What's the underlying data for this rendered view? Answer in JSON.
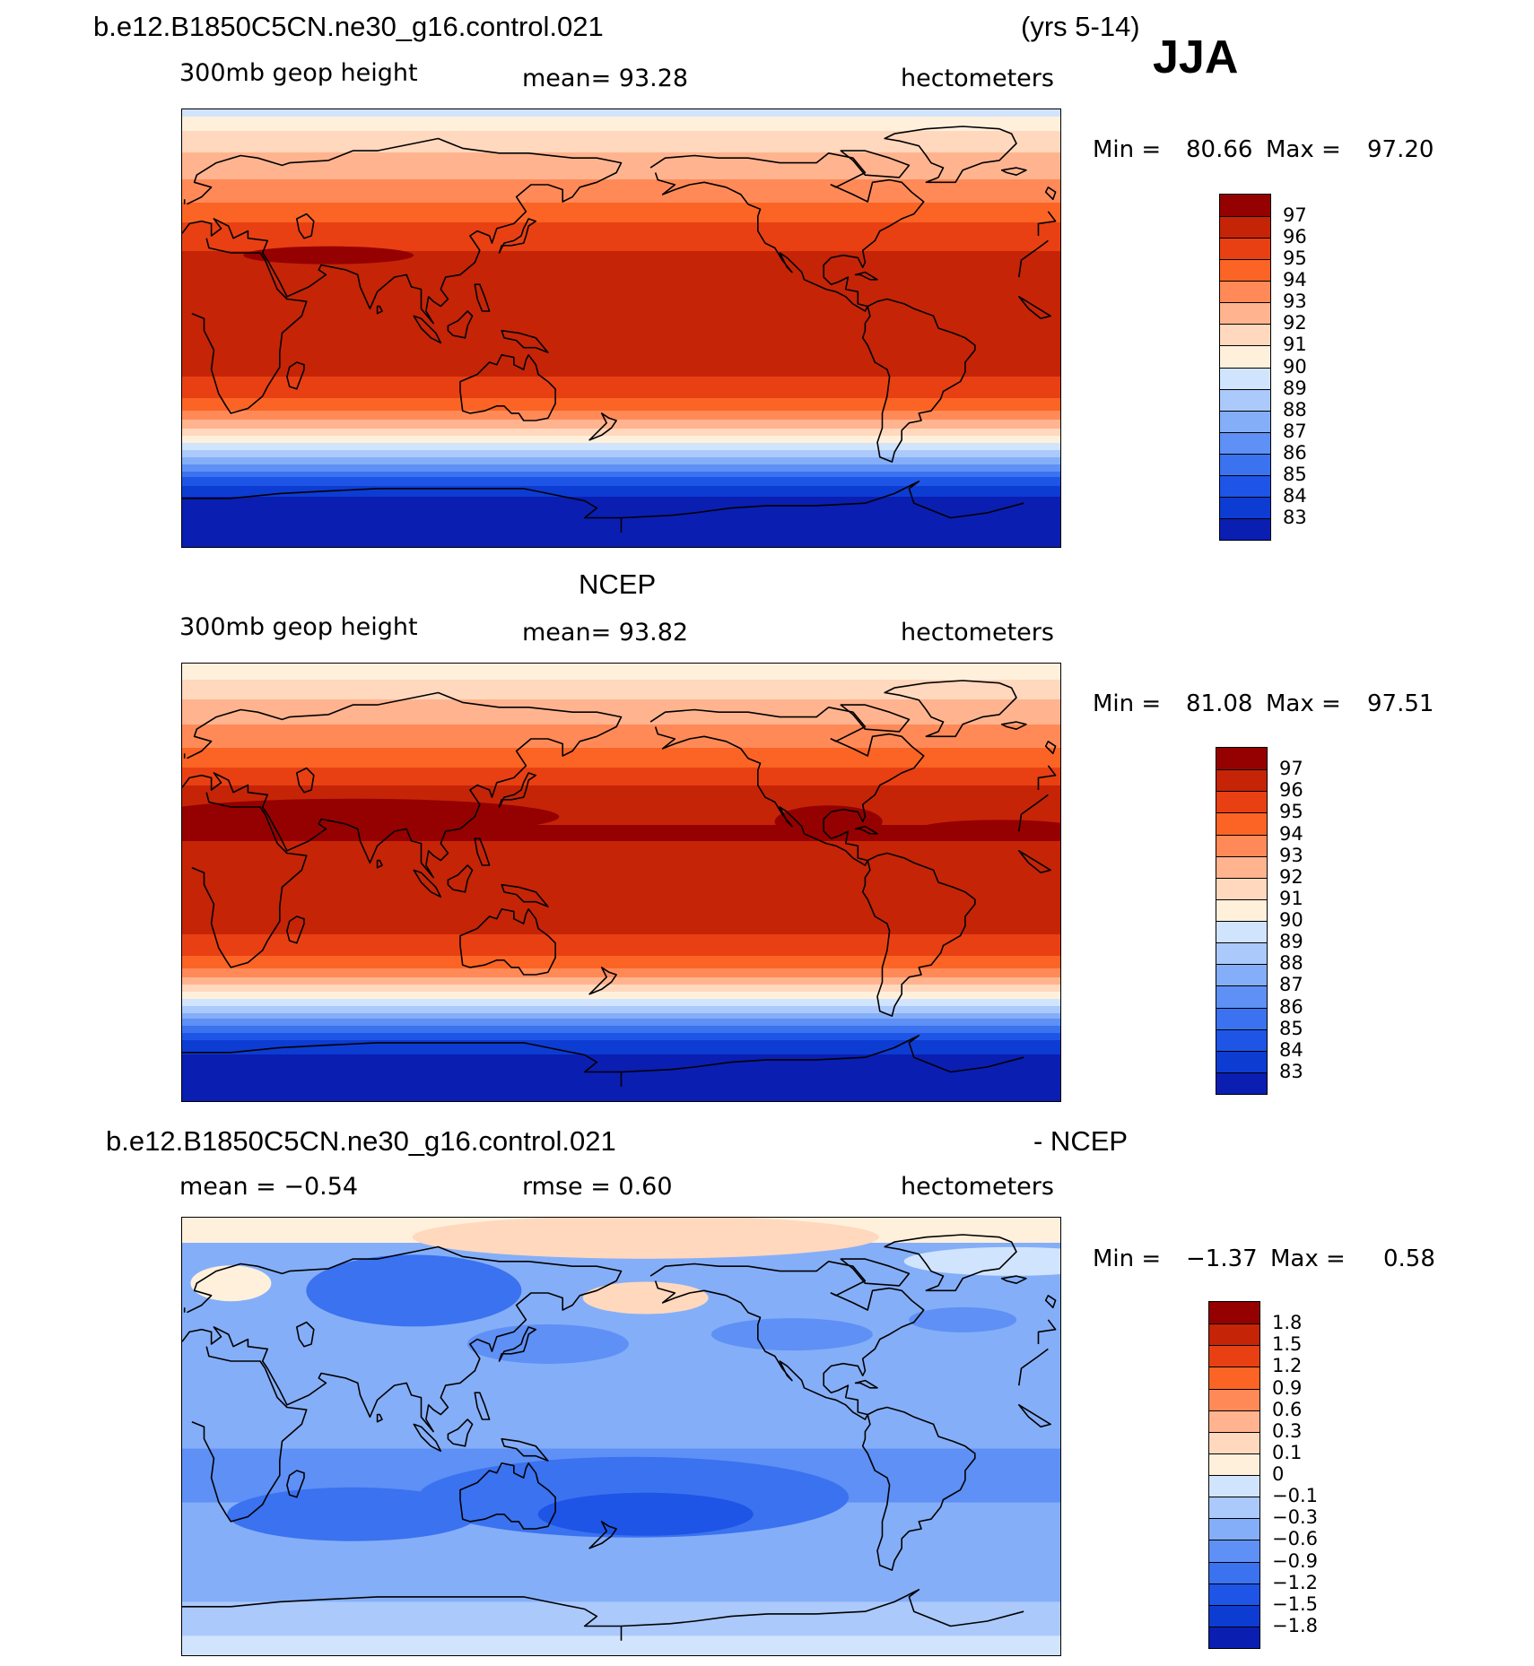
{
  "colors": {
    "seq": [
      "#00007f",
      "#0a1eb2",
      "#0d3cd2",
      "#1e55e6",
      "#3a72f0",
      "#5e90f5",
      "#85aef8",
      "#abc9fb",
      "#d1e4fe",
      "#fff0dc",
      "#ffd8be",
      "#ffb48f",
      "#ff8a58",
      "#fb6424",
      "#e84013",
      "#c52407",
      "#950100"
    ],
    "land_outline": "#000000"
  },
  "header": {
    "case_name": "b.e12.B1850C5CN.ne30_g16.control.021",
    "years": "(yrs 5-14)",
    "season": "JJA"
  },
  "panel1": {
    "variable": "300mb  geop  height",
    "mean_text": "mean=   93.28",
    "units": "hectometers",
    "minmax": {
      "min_label": "Min  =",
      "min_value": "80.66",
      "max_label": "Max  =",
      "max_value": "97.20"
    }
  },
  "panel2": {
    "title": "NCEP",
    "variable": "300mb  geop  height",
    "mean_text": "mean=   93.82",
    "units": "hectometers",
    "minmax": {
      "min_label": "Min  =",
      "min_value": "81.08",
      "max_label": "Max  =",
      "max_value": "97.51"
    }
  },
  "panel3": {
    "title_left": "b.e12.B1850C5CN.ne30_g16.control.021",
    "title_right": "- NCEP",
    "mean_text": "mean  =   −0.54",
    "rmse_text": "rmse  =     0.60",
    "units": "hectometers",
    "minmax": {
      "min_label": "Min  =",
      "min_value": "−1.37",
      "max_label": "Max  =",
      "max_value": "0.58"
    }
  },
  "chart_data": [
    {
      "type": "heatmap",
      "title": "300mb geop height (model)",
      "units": "hectometers",
      "projection": "cylindrical equidistant, centered 180",
      "mean": 93.28,
      "min": 80.66,
      "max": 97.2,
      "levels": [
        83,
        84,
        85,
        86,
        87,
        88,
        89,
        90,
        91,
        92,
        93,
        94,
        95,
        96,
        97
      ],
      "colorbar_labels": [
        "97",
        "96",
        "95",
        "94",
        "93",
        "92",
        "91",
        "90",
        "89",
        "88",
        "87",
        "86",
        "85",
        "84",
        "83"
      ],
      "zonal_profile": {
        "lat": [
          90,
          80,
          72,
          65,
          58,
          52,
          45,
          38,
          30,
          20,
          10,
          0,
          -10,
          -20,
          -28,
          -34,
          -40,
          -46,
          -52,
          -57,
          -62,
          -67,
          -72,
          -80,
          -90
        ],
        "value": [
          89.5,
          91.2,
          92.0,
          92.6,
          93.3,
          94.0,
          94.8,
          95.6,
          96.1,
          96.4,
          96.4,
          96.4,
          96.3,
          96.0,
          95.2,
          94.0,
          92.4,
          90.4,
          88.4,
          86.6,
          84.8,
          83.4,
          82.6,
          81.5,
          80.9
        ]
      }
    },
    {
      "type": "heatmap",
      "title": "NCEP 300mb geop height",
      "units": "hectometers",
      "projection": "cylindrical equidistant, centered 180",
      "mean": 93.82,
      "min": 81.08,
      "max": 97.51,
      "levels": [
        83,
        84,
        85,
        86,
        87,
        88,
        89,
        90,
        91,
        92,
        93,
        94,
        95,
        96,
        97
      ],
      "colorbar_labels": [
        "97",
        "96",
        "95",
        "94",
        "93",
        "92",
        "91",
        "90",
        "89",
        "88",
        "87",
        "86",
        "85",
        "84",
        "83"
      ],
      "zonal_profile": {
        "lat": [
          90,
          80,
          72,
          65,
          58,
          52,
          45,
          38,
          30,
          20,
          10,
          0,
          -10,
          -20,
          -28,
          -34,
          -40,
          -46,
          -52,
          -57,
          -62,
          -67,
          -72,
          -80,
          -90
        ],
        "value": [
          90.0,
          91.5,
          92.4,
          93.0,
          93.6,
          94.4,
          95.3,
          96.2,
          96.8,
          97.1,
          96.8,
          96.5,
          96.4,
          96.1,
          95.4,
          94.3,
          92.7,
          90.6,
          88.6,
          86.7,
          84.9,
          83.5,
          82.8,
          81.8,
          81.2
        ]
      }
    },
    {
      "type": "heatmap",
      "title": "b.e12.B1850C5CN.ne30_g16.control.021 - NCEP",
      "units": "hectometers",
      "mean": -0.54,
      "rmse": 0.6,
      "min": -1.37,
      "max": 0.58,
      "levels": [
        -1.8,
        -1.5,
        -1.2,
        -0.9,
        -0.6,
        -0.3,
        -0.1,
        0,
        0.1,
        0.3,
        0.6,
        0.9,
        1.2,
        1.5,
        1.8
      ],
      "colorbar_labels": [
        "1.8",
        "1.5",
        "1.2",
        "0.9",
        "0.6",
        "0.3",
        "0.1",
        "0",
        "−0.1",
        "−0.3",
        "−0.6",
        "−0.9",
        "−1.2",
        "−1.5",
        "−1.8"
      ]
    }
  ]
}
